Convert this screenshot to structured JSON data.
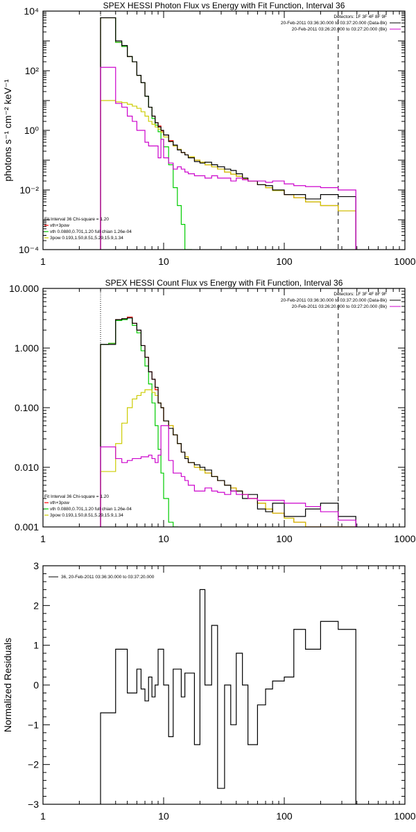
{
  "chart_data": [
    {
      "type": "line",
      "title": "SPEX HESSI Photon Flux vs Energy with Fit Function, Interval 36",
      "ylabel": "photons s⁻¹ cm⁻² keV⁻¹",
      "xlabel": "",
      "x_scale": "log",
      "y_scale": "log",
      "xlim": [
        1,
        1000
      ],
      "ylim": [
        0.0001,
        10000
      ],
      "x_ticks": [
        1,
        10,
        100,
        1000
      ],
      "x_tick_labels": [
        "1",
        "10",
        "100",
        "1000"
      ],
      "y_ticks": [
        0.0001,
        0.01,
        1,
        100,
        10000
      ],
      "y_tick_labels": [
        "10⁻⁴",
        "10⁻²",
        "10⁰",
        "10²",
        "10⁴"
      ],
      "info_lines": [
        "Detectors: 1F 3F 4F 8F 9F",
        "20-Feb-2011 03:36:30.000 to 03:37:20.000 (Data-Bk)",
        "20-Feb-2011 03:26:20.000 to 03:27:20.000 (Bk)"
      ],
      "info_colors": [
        "#000000",
        "#000000",
        "#cc00cc"
      ],
      "fit_lines": [
        "Fit Interval 36   Chi-square = 1.20",
        "vth+3pow",
        "vth 0.0880,0.701,1.20  full chian 1.26e-04",
        "3pow 0.193,1.50,8.51,5.29,15.9,1.34"
      ],
      "fit_colors": [
        "#000000",
        "#ff0000",
        "#00cc00",
        "#cccc00"
      ],
      "x_markers": [
        {
          "x": 3,
          "style": "dotted",
          "color": "#000000"
        },
        {
          "x": 280,
          "style": "dashed",
          "color": "#000000"
        }
      ],
      "series": [
        {
          "name": "vth+3pow",
          "color": "#ff0000",
          "x": [
            3,
            3.5,
            4,
            4.5,
            5,
            5.5,
            6,
            6.5,
            7,
            7.5,
            8,
            8.5,
            9,
            9.5,
            10,
            11,
            12,
            13,
            14,
            15,
            16,
            18,
            20,
            22,
            25,
            28,
            32,
            36,
            40,
            45,
            50,
            60,
            70,
            80,
            100,
            120,
            150,
            200,
            280
          ],
          "y": [
            6000,
            6000,
            900,
            650,
            300,
            200,
            70,
            40,
            14,
            6,
            3,
            1.8,
            1.4,
            0.95,
            0.7,
            0.45,
            0.3,
            0.23,
            0.18,
            0.15,
            0.13,
            0.1,
            0.085,
            0.07,
            0.06,
            0.05,
            0.04,
            0.034,
            0.029,
            0.024,
            0.02,
            0.015,
            0.012,
            0.0095,
            0.007,
            0.0055,
            0.004,
            0.003,
            0.002
          ]
        },
        {
          "name": "vth",
          "color": "#00cc00",
          "x": [
            3,
            3.5,
            4,
            4.5,
            5,
            5.5,
            6,
            6.5,
            7,
            7.5,
            8,
            8.5,
            9,
            9.5,
            10,
            11,
            12,
            13,
            14,
            15,
            16
          ],
          "y": [
            6000,
            6000,
            900,
            650,
            300,
            200,
            70,
            40,
            14,
            6,
            2.5,
            1.5,
            0.9,
            0.5,
            0.28,
            0.07,
            0.012,
            0.003,
            0.0007,
            0.0001,
            0.0001
          ]
        },
        {
          "name": "3pow",
          "color": "#cccc00",
          "x": [
            3,
            3.5,
            4,
            4.5,
            5,
            5.5,
            6,
            6.5,
            7,
            7.5,
            8,
            8.5,
            9,
            9.5,
            10,
            11,
            12,
            13,
            14,
            15,
            16,
            18,
            20,
            22,
            25,
            28,
            32,
            36,
            40,
            45,
            50,
            60,
            70,
            80,
            100,
            120,
            150,
            200,
            280
          ],
          "y": [
            10,
            10,
            9,
            8.5,
            7.5,
            6.5,
            5.5,
            4.2,
            3,
            2,
            1.6,
            1.3,
            1.1,
            0.85,
            0.6,
            0.42,
            0.3,
            0.23,
            0.18,
            0.15,
            0.13,
            0.1,
            0.085,
            0.07,
            0.06,
            0.05,
            0.04,
            0.034,
            0.029,
            0.024,
            0.02,
            0.015,
            0.012,
            0.0095,
            0.007,
            0.0055,
            0.004,
            0.003,
            0.002
          ]
        },
        {
          "name": "Data-Bk",
          "color": "#000000",
          "x": [
            3,
            3.5,
            4,
            4.5,
            5,
            5.5,
            6,
            6.5,
            7,
            7.5,
            8,
            8.5,
            9,
            9.5,
            10,
            11,
            12,
            13,
            14,
            15,
            16,
            18,
            20,
            22,
            25,
            28,
            32,
            36,
            40,
            45,
            50,
            60,
            70,
            80,
            100,
            120,
            150,
            200,
            280
          ],
          "y": [
            6000,
            6000,
            1000,
            700,
            300,
            200,
            70,
            40,
            14,
            6,
            3,
            1.8,
            1.3,
            1.0,
            0.7,
            0.42,
            0.32,
            0.22,
            0.18,
            0.15,
            0.12,
            0.09,
            0.08,
            0.085,
            0.07,
            0.06,
            0.05,
            0.045,
            0.035,
            0.025,
            0.02,
            0.015,
            0.014,
            0.01,
            0.007,
            0.007,
            0.005,
            0.007,
            0.006
          ]
        },
        {
          "name": "Bk",
          "color": "#cc00cc",
          "x": [
            3,
            3.5,
            4,
            4.5,
            5,
            5.5,
            6,
            6.5,
            7,
            7.5,
            8,
            8.5,
            9,
            9.5,
            10,
            11,
            12,
            13,
            14,
            15,
            16,
            18,
            20,
            22,
            25,
            28,
            32,
            36,
            40,
            45,
            50,
            60,
            70,
            80,
            100,
            120,
            150,
            200,
            280
          ],
          "y": [
            130,
            130,
            8,
            6,
            3,
            2,
            1,
            1,
            0.4,
            0.3,
            0.3,
            0.3,
            0.12,
            0.5,
            0.12,
            0.08,
            0.05,
            0.06,
            0.05,
            0.04,
            0.035,
            0.03,
            0.03,
            0.025,
            0.03,
            0.025,
            0.025,
            0.02,
            0.025,
            0.022,
            0.02,
            0.02,
            0.018,
            0.02,
            0.016,
            0.014,
            0.013,
            0.012,
            0.01
          ]
        }
      ]
    },
    {
      "type": "line",
      "title": "SPEX HESSI Count Flux vs Energy with Fit Function, Interval 36",
      "xlabel": "",
      "ylabel": "",
      "x_scale": "log",
      "y_scale": "log",
      "xlim": [
        1,
        1000
      ],
      "ylim": [
        0.001,
        10
      ],
      "x_ticks": [
        1,
        10,
        100,
        1000
      ],
      "x_tick_labels": [
        "1",
        "10",
        "100",
        "1000"
      ],
      "y_ticks": [
        0.001,
        0.01,
        0.1,
        1,
        10
      ],
      "y_tick_labels": [
        "0.001",
        "0.010",
        "0.100",
        "1.000",
        "10.000"
      ],
      "info_lines": [
        "Detectors: 1F 3F 4F 8F 9F",
        "20-Feb-2011 03:36:30.000 to 03:37:20.000 (Data-Bk)",
        "20-Feb-2011 03:26:20.000 to 03:27:20.000 (Bk)"
      ],
      "info_colors": [
        "#000000",
        "#000000",
        "#cc00cc"
      ],
      "fit_lines": [
        "Fit Interval 36   Chi-square = 1.20",
        "vth+3pow",
        "vth 0.0880,0.701,1.20  full chian 1.26e-04",
        "3pow 0.193,1.50,8.51,5.29,15.9,1.34"
      ],
      "fit_colors": [
        "#000000",
        "#ff0000",
        "#00cc00",
        "#cccc00"
      ],
      "x_markers": [
        {
          "x": 3,
          "style": "dotted",
          "color": "#000000"
        },
        {
          "x": 280,
          "style": "dashed",
          "color": "#000000"
        }
      ],
      "series": [
        {
          "name": "vth+3pow",
          "color": "#ff0000",
          "x": [
            3,
            3.5,
            4,
            4.5,
            5,
            5.5,
            6,
            6.5,
            7,
            7.5,
            8,
            8.5,
            9,
            9.5,
            10,
            11,
            12,
            13,
            14,
            15,
            16,
            18,
            20,
            22,
            25,
            28,
            32,
            36,
            40,
            45,
            50,
            60,
            70,
            80,
            100,
            120,
            150,
            200,
            280
          ],
          "y": [
            1.15,
            1.2,
            3.0,
            3.1,
            3.3,
            2.6,
            2.0,
            1.1,
            0.7,
            0.4,
            0.3,
            0.2,
            0.12,
            0.1,
            0.06,
            0.05,
            0.035,
            0.025,
            0.018,
            0.015,
            0.012,
            0.01,
            0.009,
            0.008,
            0.007,
            0.006,
            0.005,
            0.0045,
            0.004,
            0.0035,
            0.003,
            0.0025,
            0.002,
            0.0017,
            0.0014,
            0.0012,
            0.001,
            0.001,
            0.001
          ]
        },
        {
          "name": "vth",
          "color": "#00cc00",
          "x": [
            3,
            3.5,
            4,
            4.5,
            5,
            5.5,
            6,
            6.5,
            7,
            7.5,
            8,
            8.5,
            9,
            9.5,
            10,
            11,
            12
          ],
          "y": [
            1.15,
            1.2,
            2.9,
            3.0,
            3.2,
            2.4,
            1.8,
            0.9,
            0.5,
            0.25,
            0.12,
            0.05,
            0.02,
            0.008,
            0.003,
            0.0012,
            0.001
          ]
        },
        {
          "name": "3pow",
          "color": "#cccc00",
          "x": [
            3,
            3.5,
            4,
            4.5,
            5,
            5.5,
            6,
            6.5,
            7,
            7.5,
            8,
            8.5,
            9,
            9.5,
            10,
            11,
            12,
            13,
            14,
            15,
            16,
            18,
            20,
            22,
            25,
            28,
            32,
            36,
            40,
            45,
            50,
            60,
            70,
            80,
            100,
            120,
            150,
            200,
            280
          ],
          "y": [
            0.0085,
            0.0085,
            0.025,
            0.055,
            0.1,
            0.14,
            0.16,
            0.18,
            0.2,
            0.2,
            0.18,
            0.16,
            0.12,
            0.1,
            0.06,
            0.05,
            0.035,
            0.025,
            0.018,
            0.015,
            0.012,
            0.01,
            0.009,
            0.008,
            0.007,
            0.006,
            0.005,
            0.0045,
            0.004,
            0.0035,
            0.003,
            0.0025,
            0.002,
            0.0017,
            0.0014,
            0.0012,
            0.001,
            0.001,
            0.001
          ]
        },
        {
          "name": "Data-Bk",
          "color": "#000000",
          "x": [
            3,
            3.5,
            4,
            4.5,
            5,
            5.5,
            6,
            6.5,
            7,
            7.5,
            8,
            8.5,
            9,
            9.5,
            10,
            11,
            12,
            13,
            14,
            15,
            16,
            18,
            20,
            22,
            25,
            28,
            32,
            36,
            40,
            45,
            50,
            60,
            70,
            80,
            100,
            120,
            150,
            200,
            280
          ],
          "y": [
            1.15,
            1.15,
            3.0,
            3.1,
            3.2,
            2.6,
            2.0,
            1.1,
            0.7,
            0.4,
            0.3,
            0.22,
            0.12,
            0.1,
            0.06,
            0.045,
            0.035,
            0.025,
            0.018,
            0.014,
            0.012,
            0.011,
            0.01,
            0.009,
            0.007,
            0.006,
            0.005,
            0.004,
            0.004,
            0.003,
            0.0035,
            0.002,
            0.0018,
            0.0025,
            0.0015,
            0.0015,
            0.002,
            0.0025,
            0.0015
          ]
        },
        {
          "name": "Bk",
          "color": "#cc00cc",
          "x": [
            3,
            3.5,
            4,
            4.5,
            5,
            5.5,
            6,
            6.5,
            7,
            7.5,
            8,
            8.5,
            9,
            9.5,
            10,
            11,
            12,
            13,
            14,
            15,
            16,
            18,
            20,
            22,
            25,
            28,
            32,
            36,
            40,
            45,
            50,
            60,
            70,
            80,
            100,
            120,
            150,
            200,
            280
          ],
          "y": [
            0.022,
            0.022,
            0.014,
            0.012,
            0.013,
            0.014,
            0.014,
            0.015,
            0.015,
            0.016,
            0.014,
            0.012,
            0.016,
            0.05,
            0.05,
            0.013,
            0.008,
            0.008,
            0.007,
            0.006,
            0.005,
            0.004,
            0.004,
            0.0045,
            0.004,
            0.0038,
            0.0035,
            0.004,
            0.0035,
            0.0035,
            0.003,
            0.0028,
            0.0028,
            0.0028,
            0.0025,
            0.0025,
            0.0022,
            0.0018,
            0.0013
          ]
        }
      ]
    },
    {
      "type": "line",
      "title": "",
      "xlabel": "",
      "ylabel": "Normalized Residuals",
      "x_scale": "log",
      "y_scale": "linear",
      "xlim": [
        1,
        1000
      ],
      "ylim": [
        -3,
        3
      ],
      "x_ticks": [
        1,
        10,
        100,
        1000
      ],
      "x_tick_labels": [
        "1",
        "10",
        "100",
        "1000"
      ],
      "y_ticks": [
        -3,
        -2,
        -1,
        0,
        1,
        2,
        3
      ],
      "y_tick_labels": [
        "−3",
        "−2",
        "−1",
        "0",
        "1",
        "2",
        "3"
      ],
      "legend": [
        "36, 20-Feb-2011 03:36:30.000 to 03:37:20.000"
      ],
      "series": [
        {
          "name": "36, 20-Feb-2011 03:36:30.000 to 03:37:20.000",
          "color": "#000000",
          "x": [
            3,
            3.5,
            4,
            4.5,
            5,
            5.5,
            6,
            6.5,
            7,
            7.5,
            8,
            8.5,
            9,
            9.5,
            10,
            11,
            12,
            13,
            14,
            15,
            16,
            18,
            20,
            22,
            25,
            28,
            32,
            36,
            40,
            45,
            50,
            60,
            70,
            80,
            100,
            120,
            150,
            200,
            280
          ],
          "y": [
            -0.7,
            -0.7,
            0.9,
            0.9,
            -0.2,
            -0.2,
            0.4,
            -0.1,
            -0.4,
            0.2,
            -0.3,
            0.0,
            0.9,
            0.9,
            0.0,
            -1.3,
            0.4,
            0.4,
            -0.3,
            0.3,
            0.3,
            -1.5,
            2.4,
            0.0,
            1.5,
            -2.6,
            0.0,
            -1.0,
            0.8,
            0.0,
            -1.5,
            -0.5,
            -0.1,
            0.1,
            0.2,
            1.4,
            0.9,
            1.6,
            1.4
          ]
        }
      ]
    }
  ]
}
